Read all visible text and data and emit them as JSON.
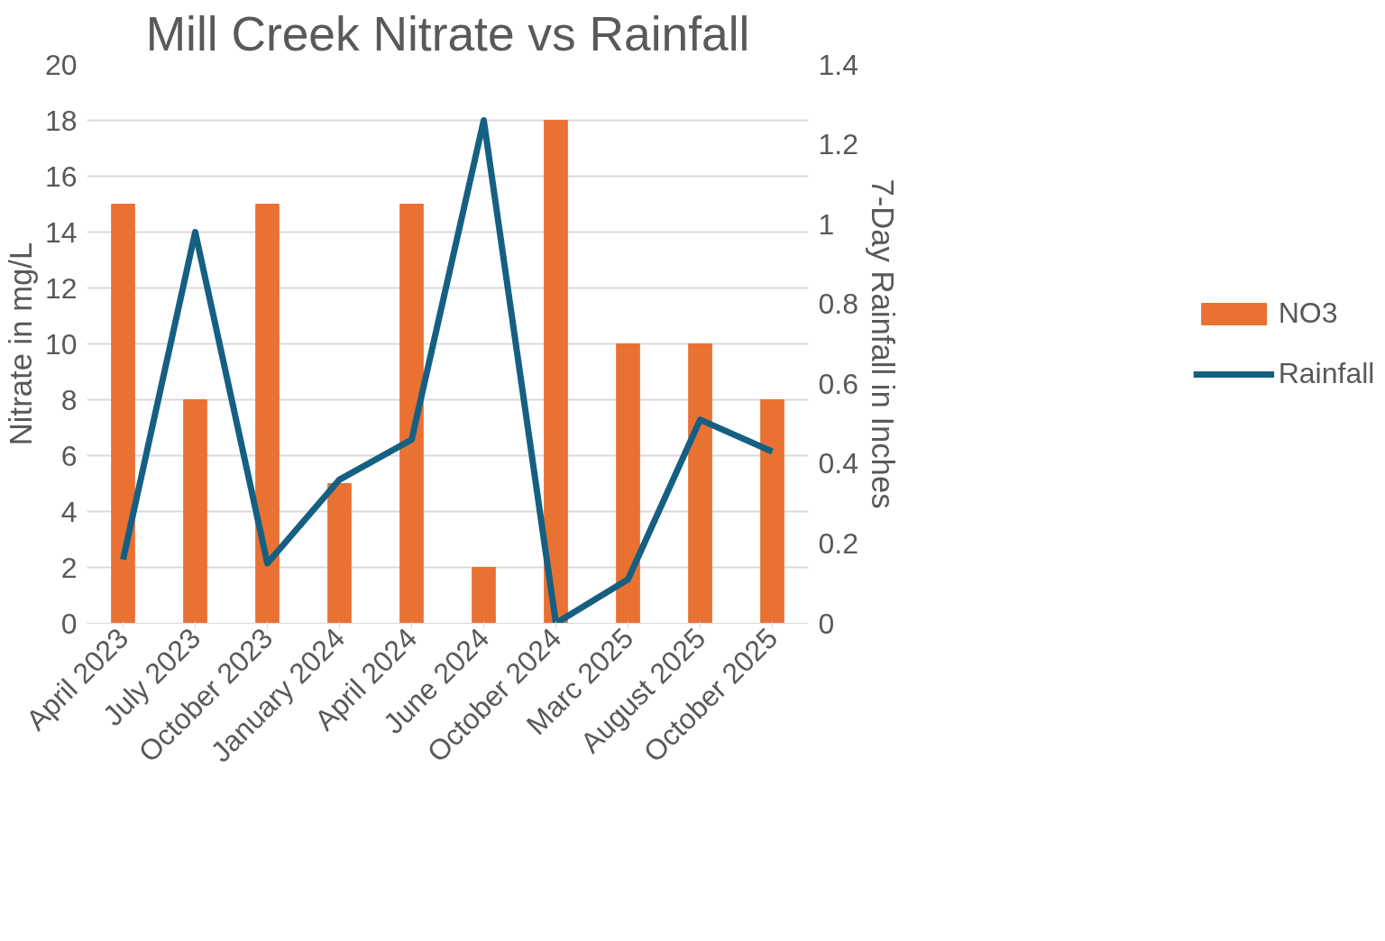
{
  "chart_data": {
    "type": "bar",
    "title": "Mill Creek Nitrate vs Rainfall",
    "ylabel": "Nitrate in mg/L",
    "y2label": "7-Day Rainfall in Inches",
    "categories": [
      "April 2023",
      "July 2023",
      "October 2023",
      "January 2024",
      "April 2024",
      "June 2024",
      "October 2024",
      "Marc 2025",
      "August 2025",
      "October 2025"
    ],
    "series": [
      {
        "name": "NO3",
        "color": "#e97132",
        "values": [
          15,
          8,
          15,
          5,
          15,
          2,
          18,
          10,
          10,
          8
        ]
      },
      {
        "name": "Rainfall",
        "type": "line",
        "axis": "y2",
        "color": "#156082",
        "values": [
          0.16,
          0.98,
          0.15,
          0.36,
          0.46,
          1.26,
          0,
          0.11,
          0.51,
          0.43
        ]
      }
    ],
    "ylim": [
      0,
      20
    ],
    "yticks": [
      0,
      2,
      4,
      6,
      8,
      10,
      12,
      14,
      16,
      18,
      20
    ],
    "y2lim": [
      0,
      1.4
    ],
    "y2ticks": [
      0,
      {
        "value": 0.2,
        "label": "0.2"
      },
      {
        "value": 0.4,
        "label": "0.4"
      },
      {
        "value": 0.6,
        "label": "0.6"
      },
      {
        "value": 0.8,
        "label": "0.8"
      },
      1,
      {
        "value": 1.2,
        "label": "1.2"
      },
      {
        "value": 1.4,
        "label": "1.4"
      }
    ],
    "grid": "y",
    "legend": "right",
    "line_style": "solid",
    "marker": "none"
  }
}
